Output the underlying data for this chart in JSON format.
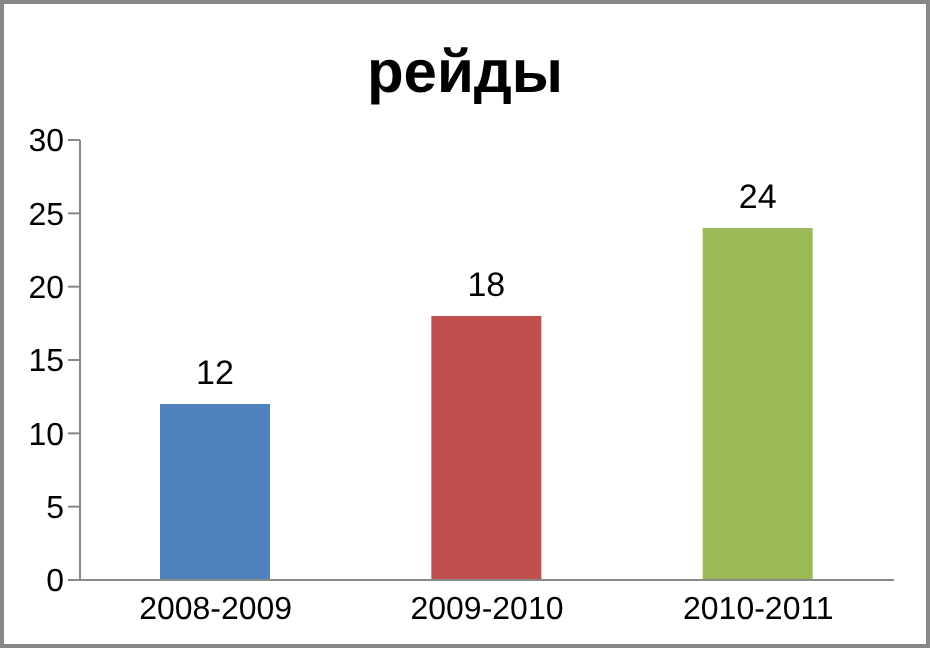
{
  "chart_data": {
    "type": "bar",
    "title": "рейды",
    "categories": [
      "2008-2009",
      "2009-2010",
      "2010-2011"
    ],
    "values": [
      12,
      18,
      24
    ],
    "colors": [
      "#4f81bd",
      "#c0504d",
      "#9bbb59"
    ],
    "ylim": [
      0,
      30
    ],
    "yticks": [
      0,
      5,
      10,
      15,
      20,
      25,
      30
    ],
    "grid": false,
    "data_labels": true
  }
}
